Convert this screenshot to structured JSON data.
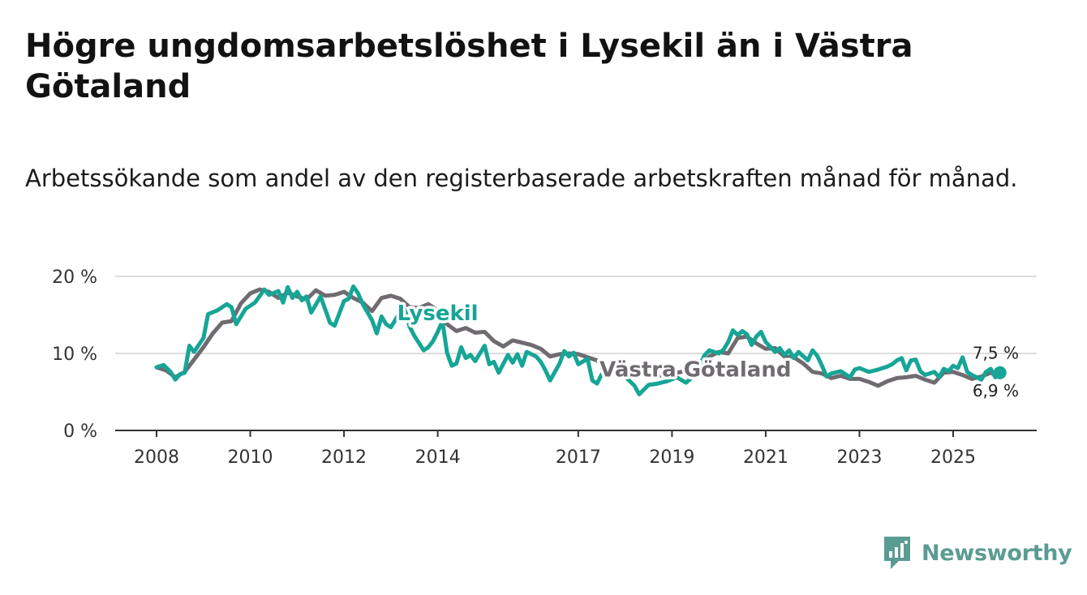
{
  "title": "Högre ungdomsarbetslöshet i Lysekil än i Västra Götaland",
  "subtitle": "Arbetssökande som andel av den registerbaserade arbetskraften månad för månad.",
  "brand": {
    "name": "Newsworthy"
  },
  "colors": {
    "lysekil": "#16a596",
    "vastra": "#6f6b70",
    "grid": "#dddddd",
    "axis": "#333333"
  },
  "chart_data": {
    "type": "line",
    "title": "Högre ungdomsarbetslöshet i Lysekil än i Västra Götaland",
    "ylabel": "",
    "xlabel": "",
    "ylim": [
      0,
      20
    ],
    "xlim": [
      2007.5,
      2026.9
    ],
    "y_ticks": [
      0,
      10,
      20
    ],
    "y_tick_labels": [
      "0 %",
      "10 %",
      "20 %"
    ],
    "x_ticks": [
      2008,
      2010,
      2012,
      2014,
      2017,
      2019,
      2021,
      2023,
      2025
    ],
    "x_tick_labels": [
      "2008",
      "2010",
      "2012",
      "2014",
      "2017",
      "2019",
      "2021",
      "2023",
      "2025"
    ],
    "series": [
      {
        "name": "Västra Götaland",
        "label": "Västra Götaland",
        "end_label": "6,9 %",
        "points": [
          [
            2008.0,
            8.2
          ],
          [
            2008.2,
            7.8
          ],
          [
            2008.4,
            6.9
          ],
          [
            2008.6,
            7.6
          ],
          [
            2008.8,
            9.2
          ],
          [
            2009.0,
            10.8
          ],
          [
            2009.2,
            12.6
          ],
          [
            2009.4,
            14.0
          ],
          [
            2009.6,
            14.2
          ],
          [
            2009.8,
            16.5
          ],
          [
            2010.0,
            17.8
          ],
          [
            2010.2,
            18.3
          ],
          [
            2010.4,
            18.0
          ],
          [
            2010.6,
            17.2
          ],
          [
            2010.8,
            17.9
          ],
          [
            2011.0,
            17.4
          ],
          [
            2011.2,
            17.0
          ],
          [
            2011.4,
            18.2
          ],
          [
            2011.6,
            17.5
          ],
          [
            2011.8,
            17.6
          ],
          [
            2012.0,
            18.0
          ],
          [
            2012.2,
            17.2
          ],
          [
            2012.4,
            16.6
          ],
          [
            2012.6,
            15.5
          ],
          [
            2012.8,
            17.2
          ],
          [
            2013.0,
            17.5
          ],
          [
            2013.2,
            17.1
          ],
          [
            2013.4,
            16.0
          ],
          [
            2013.6,
            15.9
          ],
          [
            2013.8,
            16.4
          ],
          [
            2014.0,
            15.6
          ],
          [
            2014.2,
            13.8
          ],
          [
            2014.4,
            12.9
          ],
          [
            2014.6,
            13.3
          ],
          [
            2014.8,
            12.7
          ],
          [
            2015.0,
            12.8
          ],
          [
            2015.2,
            11.6
          ],
          [
            2015.4,
            10.9
          ],
          [
            2015.6,
            11.7
          ],
          [
            2015.8,
            11.4
          ],
          [
            2016.0,
            11.1
          ],
          [
            2016.2,
            10.6
          ],
          [
            2016.4,
            9.6
          ],
          [
            2016.6,
            9.9
          ],
          [
            2016.8,
            10.0
          ],
          [
            2017.0,
            9.9
          ],
          [
            2017.2,
            9.5
          ],
          [
            2017.4,
            9.1
          ],
          [
            2017.6,
            8.1
          ],
          [
            2017.8,
            8.5
          ],
          [
            2018.0,
            8.0
          ],
          [
            2018.2,
            7.7
          ],
          [
            2018.4,
            7.3
          ],
          [
            2018.6,
            7.0
          ],
          [
            2018.8,
            7.2
          ],
          [
            2019.0,
            7.4
          ],
          [
            2019.2,
            7.6
          ],
          [
            2019.4,
            7.9
          ],
          [
            2019.6,
            8.4
          ],
          [
            2019.8,
            9.6
          ],
          [
            2020.0,
            10.2
          ],
          [
            2020.2,
            10.0
          ],
          [
            2020.4,
            12.0
          ],
          [
            2020.6,
            12.2
          ],
          [
            2020.8,
            11.3
          ],
          [
            2021.0,
            10.6
          ],
          [
            2021.2,
            10.7
          ],
          [
            2021.4,
            9.6
          ],
          [
            2021.6,
            9.5
          ],
          [
            2021.8,
            8.7
          ],
          [
            2022.0,
            7.6
          ],
          [
            2022.2,
            7.4
          ],
          [
            2022.4,
            6.8
          ],
          [
            2022.6,
            7.1
          ],
          [
            2022.8,
            6.7
          ],
          [
            2023.0,
            6.7
          ],
          [
            2023.2,
            6.3
          ],
          [
            2023.4,
            5.8
          ],
          [
            2023.6,
            6.4
          ],
          [
            2023.8,
            6.8
          ],
          [
            2024.0,
            6.9
          ],
          [
            2024.2,
            7.1
          ],
          [
            2024.4,
            6.6
          ],
          [
            2024.6,
            6.2
          ],
          [
            2024.8,
            7.5
          ],
          [
            2025.0,
            7.6
          ],
          [
            2025.2,
            7.2
          ],
          [
            2025.4,
            6.7
          ],
          [
            2025.6,
            7.0
          ],
          [
            2025.8,
            7.5
          ],
          [
            2026.0,
            6.9
          ]
        ]
      },
      {
        "name": "Lysekil",
        "label": "Lysekil",
        "end_label": "7,5 %",
        "points": [
          [
            2008.0,
            8.2
          ],
          [
            2008.15,
            8.5
          ],
          [
            2008.3,
            7.6
          ],
          [
            2008.4,
            6.6
          ],
          [
            2008.5,
            7.3
          ],
          [
            2008.6,
            7.5
          ],
          [
            2008.7,
            11.0
          ],
          [
            2008.8,
            10.2
          ],
          [
            2009.0,
            12.0
          ],
          [
            2009.1,
            15.1
          ],
          [
            2009.3,
            15.6
          ],
          [
            2009.5,
            16.4
          ],
          [
            2009.6,
            16.0
          ],
          [
            2009.7,
            13.8
          ],
          [
            2009.9,
            15.8
          ],
          [
            2010.1,
            16.6
          ],
          [
            2010.3,
            18.3
          ],
          [
            2010.4,
            17.6
          ],
          [
            2010.6,
            18.1
          ],
          [
            2010.7,
            16.6
          ],
          [
            2010.8,
            18.6
          ],
          [
            2010.9,
            17.2
          ],
          [
            2011.0,
            18.0
          ],
          [
            2011.1,
            16.9
          ],
          [
            2011.2,
            17.4
          ],
          [
            2011.3,
            15.3
          ],
          [
            2011.5,
            17.4
          ],
          [
            2011.6,
            15.7
          ],
          [
            2011.7,
            14.0
          ],
          [
            2011.8,
            13.6
          ],
          [
            2012.0,
            16.8
          ],
          [
            2012.1,
            17.1
          ],
          [
            2012.2,
            18.7
          ],
          [
            2012.3,
            17.8
          ],
          [
            2012.4,
            16.4
          ],
          [
            2012.6,
            14.3
          ],
          [
            2012.7,
            12.6
          ],
          [
            2012.8,
            14.8
          ],
          [
            2012.9,
            13.8
          ],
          [
            2013.0,
            13.4
          ],
          [
            2013.2,
            15.4
          ],
          [
            2013.3,
            15.7
          ],
          [
            2013.4,
            13.5
          ],
          [
            2013.5,
            12.3
          ],
          [
            2013.7,
            10.4
          ],
          [
            2013.8,
            10.8
          ],
          [
            2013.9,
            11.6
          ],
          [
            2014.0,
            12.8
          ],
          [
            2014.1,
            14.2
          ],
          [
            2014.2,
            10.1
          ],
          [
            2014.3,
            8.4
          ],
          [
            2014.4,
            8.7
          ],
          [
            2014.5,
            10.8
          ],
          [
            2014.6,
            9.4
          ],
          [
            2014.7,
            9.8
          ],
          [
            2014.8,
            9.0
          ],
          [
            2014.9,
            10.0
          ],
          [
            2015.0,
            11.0
          ],
          [
            2015.1,
            8.6
          ],
          [
            2015.2,
            8.9
          ],
          [
            2015.3,
            7.5
          ],
          [
            2015.5,
            9.8
          ],
          [
            2015.6,
            8.8
          ],
          [
            2015.7,
            9.9
          ],
          [
            2015.8,
            8.4
          ],
          [
            2015.9,
            10.2
          ],
          [
            2016.1,
            9.6
          ],
          [
            2016.2,
            8.9
          ],
          [
            2016.3,
            7.8
          ],
          [
            2016.4,
            6.5
          ],
          [
            2016.6,
            8.7
          ],
          [
            2016.7,
            10.3
          ],
          [
            2016.8,
            9.6
          ],
          [
            2016.9,
            10.1
          ],
          [
            2017.0,
            8.6
          ],
          [
            2017.2,
            9.3
          ],
          [
            2017.3,
            6.5
          ],
          [
            2017.4,
            6.1
          ],
          [
            2017.5,
            7.3
          ],
          [
            2017.6,
            7.6
          ],
          [
            2017.7,
            8.2
          ],
          [
            2018.0,
            7.0
          ],
          [
            2018.2,
            5.8
          ],
          [
            2018.3,
            4.7
          ],
          [
            2018.5,
            5.9
          ],
          [
            2018.7,
            6.1
          ],
          [
            2018.9,
            6.4
          ],
          [
            2019.1,
            6.9
          ],
          [
            2019.3,
            6.2
          ],
          [
            2019.5,
            7.3
          ],
          [
            2019.7,
            9.8
          ],
          [
            2019.8,
            10.4
          ],
          [
            2020.0,
            10.0
          ],
          [
            2020.1,
            10.5
          ],
          [
            2020.2,
            11.5
          ],
          [
            2020.3,
            13.0
          ],
          [
            2020.4,
            12.4
          ],
          [
            2020.5,
            12.9
          ],
          [
            2020.6,
            12.5
          ],
          [
            2020.7,
            11.1
          ],
          [
            2020.8,
            12.2
          ],
          [
            2020.9,
            12.8
          ],
          [
            2021.0,
            11.5
          ],
          [
            2021.2,
            10.2
          ],
          [
            2021.3,
            10.7
          ],
          [
            2021.4,
            9.8
          ],
          [
            2021.5,
            10.4
          ],
          [
            2021.6,
            9.4
          ],
          [
            2021.7,
            10.2
          ],
          [
            2021.9,
            9.1
          ],
          [
            2022.0,
            10.4
          ],
          [
            2022.1,
            9.7
          ],
          [
            2022.2,
            8.4
          ],
          [
            2022.3,
            7.0
          ],
          [
            2022.4,
            7.4
          ],
          [
            2022.6,
            7.7
          ],
          [
            2022.8,
            6.9
          ],
          [
            2022.9,
            7.9
          ],
          [
            2023.0,
            8.1
          ],
          [
            2023.2,
            7.6
          ],
          [
            2023.4,
            7.9
          ],
          [
            2023.6,
            8.3
          ],
          [
            2023.7,
            8.6
          ],
          [
            2023.8,
            9.1
          ],
          [
            2023.9,
            9.4
          ],
          [
            2024.0,
            7.8
          ],
          [
            2024.1,
            9.1
          ],
          [
            2024.2,
            9.2
          ],
          [
            2024.3,
            7.7
          ],
          [
            2024.4,
            7.2
          ],
          [
            2024.6,
            7.6
          ],
          [
            2024.7,
            6.9
          ],
          [
            2024.8,
            8.0
          ],
          [
            2024.9,
            7.7
          ],
          [
            2025.0,
            8.4
          ],
          [
            2025.1,
            8.1
          ],
          [
            2025.2,
            9.5
          ],
          [
            2025.3,
            7.6
          ],
          [
            2025.4,
            7.2
          ],
          [
            2025.6,
            6.6
          ],
          [
            2025.7,
            7.6
          ],
          [
            2025.8,
            8.0
          ],
          [
            2025.9,
            6.9
          ],
          [
            2026.0,
            7.5
          ]
        ]
      }
    ]
  }
}
